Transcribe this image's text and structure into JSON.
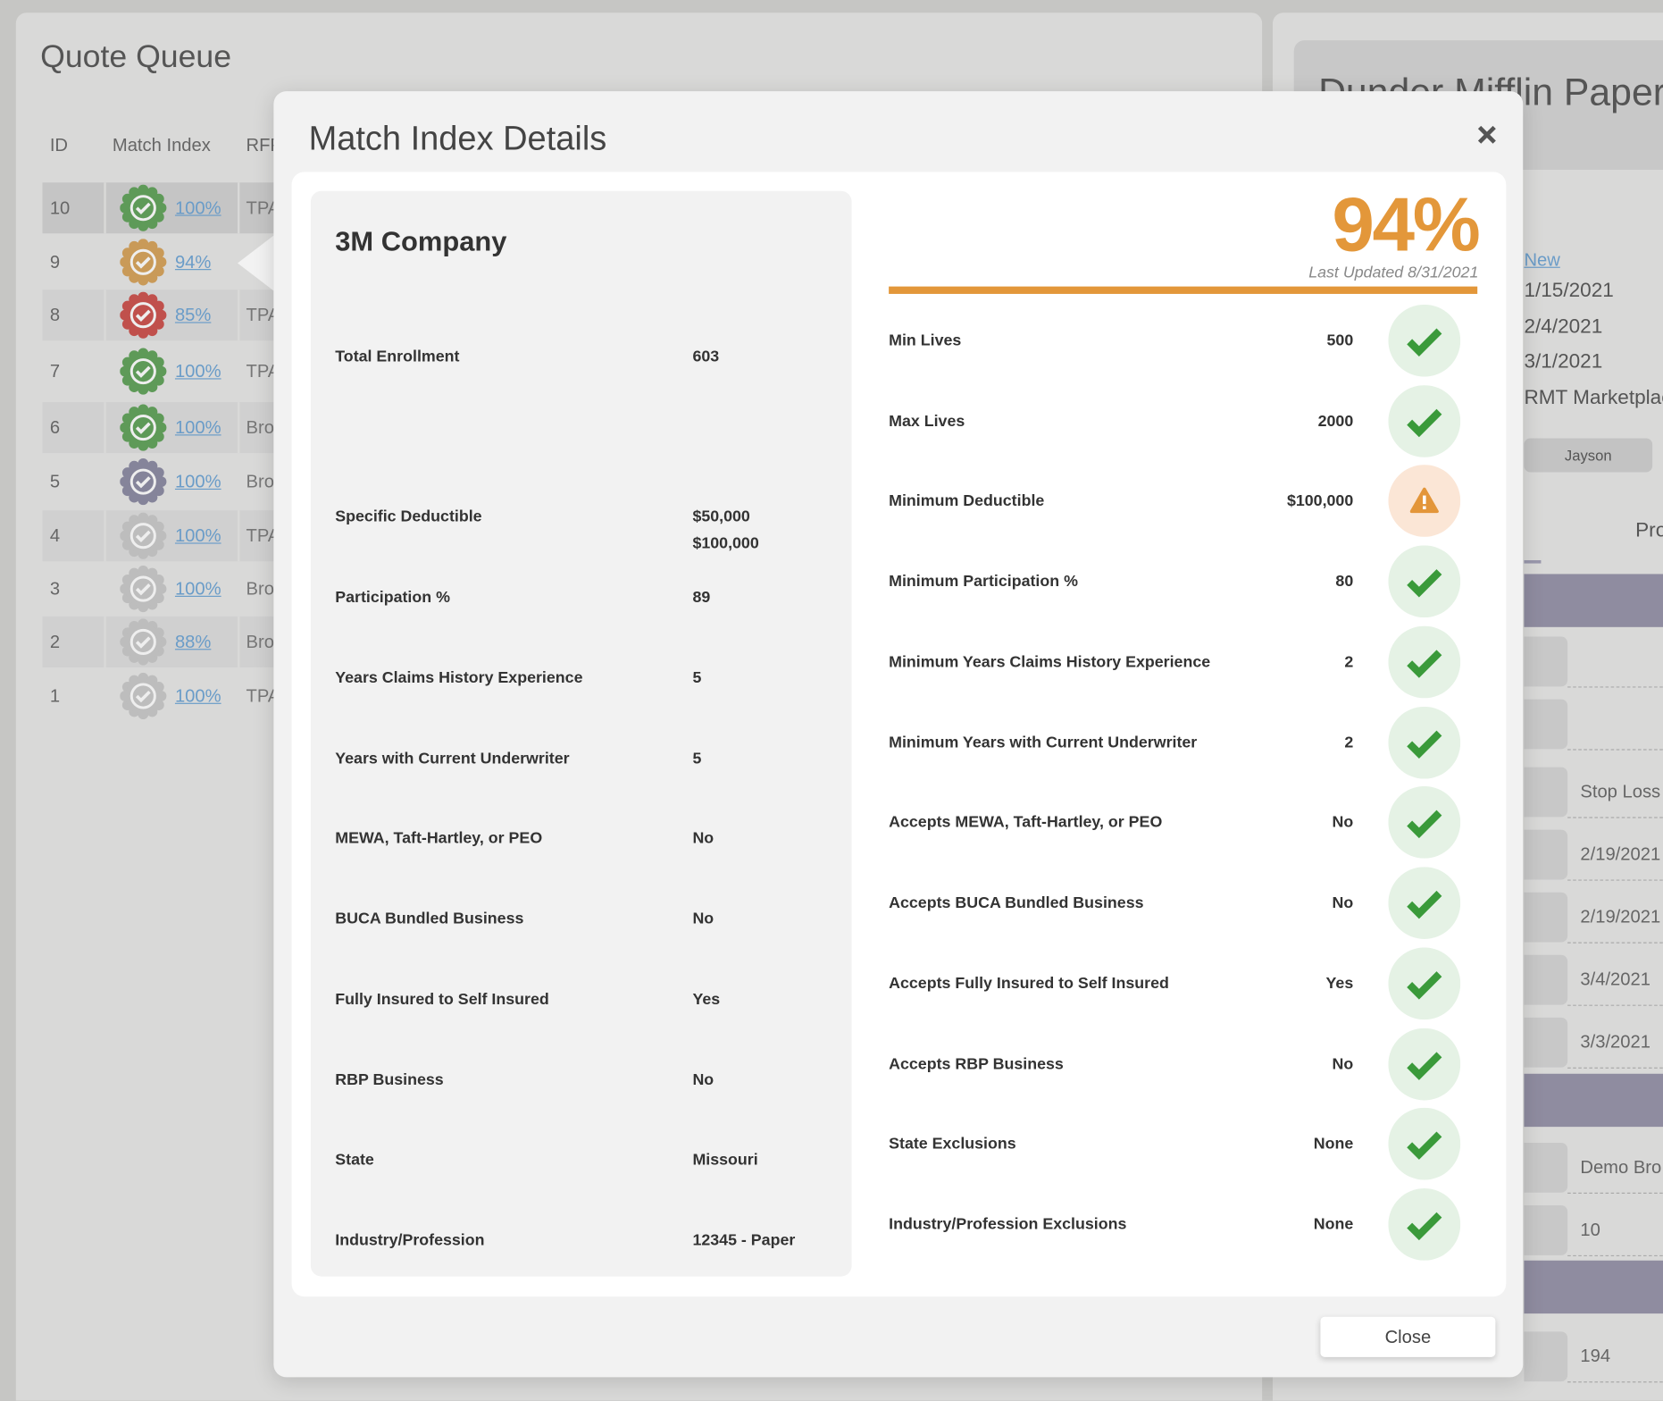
{
  "queue": {
    "title": "Quote Queue",
    "headers": [
      "ID",
      "Match Index",
      "RFP"
    ],
    "rows": [
      {
        "id": "10",
        "match": "100%",
        "rfp": "TPA",
        "badge": "#5e9a58"
      },
      {
        "id": "9",
        "match": "94%",
        "rfp": "",
        "badge": "#c99a58"
      },
      {
        "id": "8",
        "match": "85%",
        "rfp": "TPA",
        "badge": "#c0504c"
      },
      {
        "id": "7",
        "match": "100%",
        "rfp": "TPA",
        "badge": "#5e9a58"
      },
      {
        "id": "6",
        "match": "100%",
        "rfp": "Bro",
        "badge": "#5e9a58"
      },
      {
        "id": "5",
        "match": "100%",
        "rfp": "Bro",
        "badge": "#85849a"
      },
      {
        "id": "4",
        "match": "100%",
        "rfp": "TPA",
        "badge": "#bdbdbd"
      },
      {
        "id": "3",
        "match": "100%",
        "rfp": "Bro",
        "badge": "#bdbdbd"
      },
      {
        "id": "2",
        "match": "88%",
        "rfp": "Bro",
        "badge": "#bdbdbd"
      },
      {
        "id": "1",
        "match": "100%",
        "rfp": "TPA",
        "badge": "#bdbdbd"
      }
    ]
  },
  "detail_panel": {
    "title": "Dunder Mifflin Paper",
    "status_link": "New",
    "dates": [
      "1/15/2021",
      "2/4/2021",
      "3/1/2021"
    ],
    "marketplace": "RMT Marketplace",
    "user_button": "Jayson",
    "tab": "Pro",
    "fields": [
      "",
      "",
      "Stop Loss",
      "2/19/2021",
      "2/19/2021",
      "3/4/2021",
      "3/3/2021",
      "Demo Bro",
      "10",
      "194"
    ]
  },
  "modal": {
    "title": "Match Index Details",
    "company": "3M Company",
    "score": "94%",
    "last_updated": "Last Updated 8/31/2021",
    "close_button": "Close",
    "rows": [
      {
        "left_label": "Total Enrollment",
        "left_values": [
          "603"
        ],
        "label": "Min Lives",
        "value": "500",
        "status": "ok"
      },
      {
        "label": "Max Lives",
        "value": "2000",
        "status": "ok"
      },
      {
        "left_label": "Specific Deductible",
        "left_values": [
          "$50,000",
          "$100,000"
        ],
        "label": "Minimum Deductible",
        "value": "$100,000",
        "status": "warn"
      },
      {
        "left_label": "Participation %",
        "left_values": [
          "89"
        ],
        "label": "Minimum Participation %",
        "value": "80",
        "status": "ok"
      },
      {
        "left_label": "Years Claims History Experience",
        "left_values": [
          "5"
        ],
        "label": "Minimum Years Claims History Experience",
        "value": "2",
        "status": "ok"
      },
      {
        "left_label": "Years with Current Underwriter",
        "left_values": [
          "5"
        ],
        "label": "Minimum Years with Current Underwriter",
        "value": "2",
        "status": "ok"
      },
      {
        "left_label": "MEWA, Taft-Hartley, or PEO",
        "left_values": [
          "No"
        ],
        "label": "Accepts MEWA, Taft-Hartley, or PEO",
        "value": "No",
        "status": "ok"
      },
      {
        "left_label": "BUCA Bundled Business",
        "left_values": [
          "No"
        ],
        "label": "Accepts BUCA Bundled Business",
        "value": "No",
        "status": "ok"
      },
      {
        "left_label": "Fully Insured to Self Insured",
        "left_values": [
          "Yes"
        ],
        "label": "Accepts Fully Insured to Self Insured",
        "value": "Yes",
        "status": "ok"
      },
      {
        "left_label": "RBP Business",
        "left_values": [
          "No"
        ],
        "label": "Accepts RBP Business",
        "value": "No",
        "status": "ok"
      },
      {
        "left_label": "State",
        "left_values": [
          "Missouri"
        ],
        "label": "State Exclusions",
        "value": "None",
        "status": "ok"
      },
      {
        "left_label": "Industry/Profession",
        "left_values": [
          "12345 - Paper"
        ],
        "label": "Industry/Profession Exclusions",
        "value": "None",
        "status": "ok"
      }
    ]
  }
}
